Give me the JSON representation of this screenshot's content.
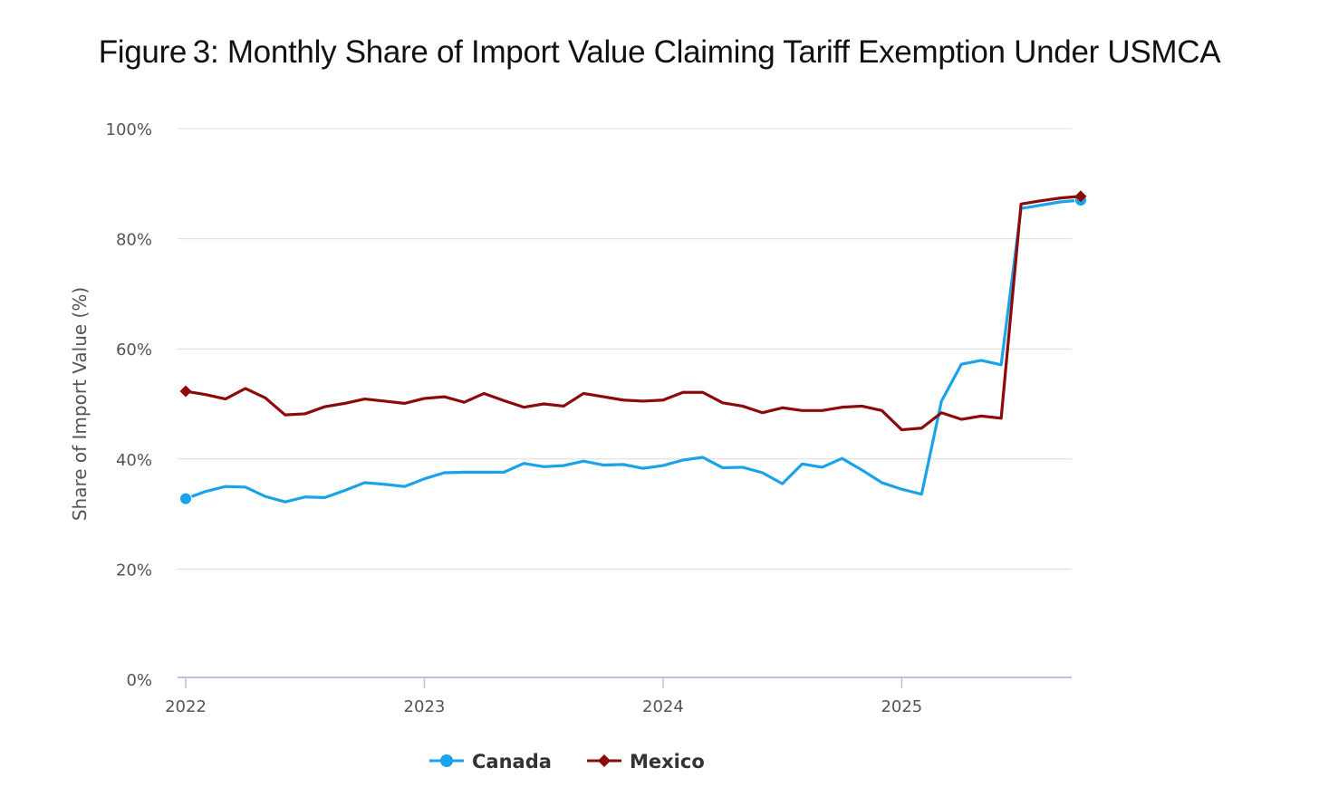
{
  "title": "Figure 3: Monthly Share of Import Value Claiming Tariff Exemption Under USMCA",
  "chart_data": {
    "type": "line",
    "title": "Figure 3: Monthly Share of Import Value Claiming Tariff Exemption Under USMCA",
    "ylabel": "Share of Import Value (%)",
    "xlabel": "",
    "ylim": [
      0,
      100
    ],
    "yticks": [
      0,
      20,
      40,
      60,
      80,
      100
    ],
    "ytick_labels": [
      "0%",
      "20%",
      "40%",
      "60%",
      "80%",
      "100%"
    ],
    "xticks": [
      0,
      12,
      24,
      36
    ],
    "xtick_labels": [
      "2022",
      "2023",
      "2024",
      "2025"
    ],
    "xlim": [
      0,
      45
    ],
    "x_start": "2022-01",
    "grid": "horizontal",
    "legend": "bottom-center",
    "series": [
      {
        "name": "Canada",
        "color": "#1aa3e8",
        "marker": "circle",
        "values": [
          32.8,
          34.1,
          35.0,
          34.9,
          33.2,
          32.2,
          33.1,
          33.0,
          34.3,
          35.7,
          35.4,
          35.0,
          36.4,
          37.5,
          37.6,
          37.6,
          37.6,
          39.2,
          38.6,
          38.8,
          39.6,
          38.9,
          39.0,
          38.3,
          38.8,
          39.8,
          40.3,
          38.4,
          38.5,
          37.5,
          35.5,
          39.1,
          38.5,
          40.1,
          38.0,
          35.7,
          34.5,
          33.6,
          50.5,
          57.2,
          57.9,
          57.1,
          85.5,
          86.1,
          86.7,
          87.0
        ]
      },
      {
        "name": "Mexico",
        "color": "#8b0a0a",
        "marker": "diamond",
        "values": [
          52.3,
          51.7,
          50.9,
          52.8,
          51.1,
          48.0,
          48.2,
          49.5,
          50.1,
          50.9,
          50.5,
          50.1,
          51.0,
          51.3,
          50.3,
          51.9,
          50.6,
          49.4,
          50.0,
          49.6,
          51.9,
          51.3,
          50.7,
          50.5,
          50.7,
          52.1,
          52.1,
          50.2,
          49.6,
          48.4,
          49.3,
          48.8,
          48.8,
          49.4,
          49.6,
          48.8,
          45.3,
          45.6,
          48.4,
          47.2,
          47.8,
          47.4,
          86.3,
          86.9,
          87.4,
          87.7
        ]
      }
    ]
  }
}
